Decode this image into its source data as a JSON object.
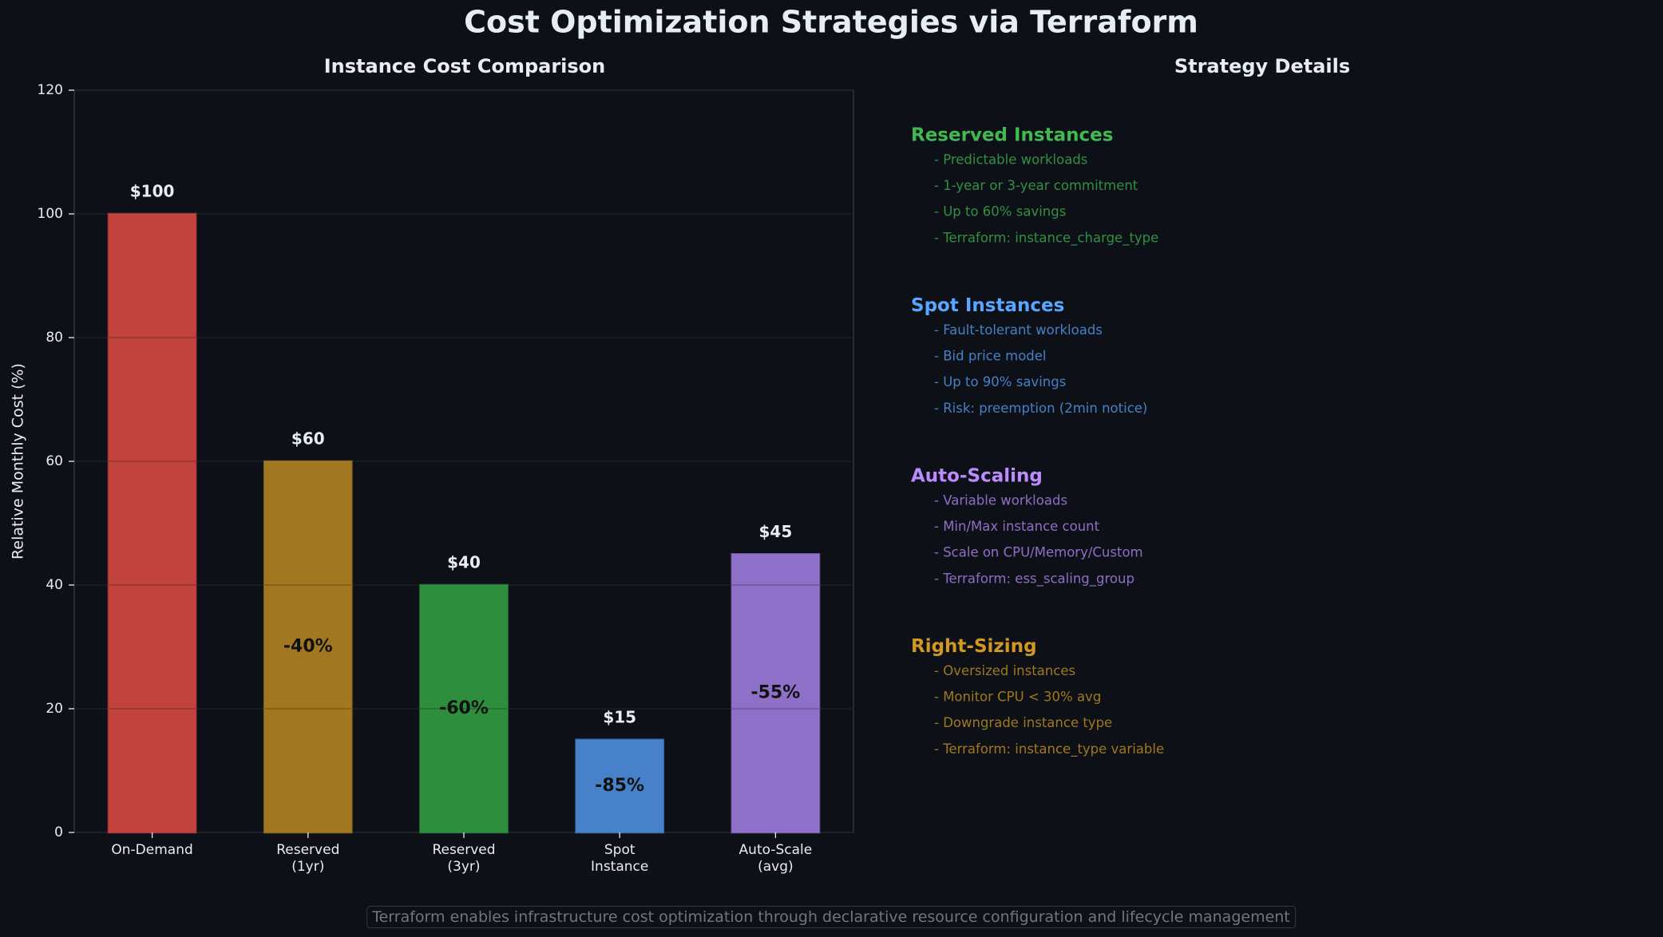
{
  "title": "Cost Optimization Strategies via Terraform",
  "chart_data": {
    "type": "bar",
    "title": "Instance Cost Comparison",
    "y_label": "Relative Monthly Cost (%)",
    "categories": [
      "On-Demand",
      "Reserved\n(1yr)",
      "Reserved\n(3yr)",
      "Spot\nInstance",
      "Auto-Scale\n(avg)"
    ],
    "values": [
      100,
      60,
      40,
      15,
      45
    ],
    "value_labels": [
      "$100",
      "$60",
      "$40",
      "$15",
      "$45"
    ],
    "bar_annotations": [
      null,
      "-40%",
      "-60%",
      "-85%",
      "-55%"
    ],
    "colors": [
      "#cc4640",
      "#aa7e22",
      "#319540",
      "#4a88d4",
      "#9776d2"
    ],
    "ylim": [
      0,
      120
    ],
    "yticks": [
      0,
      20,
      40,
      60,
      80,
      100,
      120
    ],
    "grid": true
  },
  "details": {
    "title": "Strategy Details",
    "sections": [
      {
        "heading": "Reserved Instances",
        "color": "#3fb950",
        "items": [
          "- Predictable workloads",
          "- 1-year or 3-year commitment",
          "- Up to 60% savings",
          "- Terraform: instance_charge_type"
        ]
      },
      {
        "heading": "Spot Instances",
        "color": "#58a6ff",
        "items": [
          "- Fault-tolerant workloads",
          "- Bid price model",
          "- Up to 90% savings",
          "- Risk: preemption (2min notice)"
        ]
      },
      {
        "heading": "Auto-Scaling",
        "color": "#bc8cff",
        "items": [
          "- Variable workloads",
          "- Min/Max instance count",
          "- Scale on CPU/Memory/Custom",
          "- Terraform: ess_scaling_group"
        ]
      },
      {
        "heading": "Right-Sizing",
        "color": "#d29922",
        "items": [
          "- Oversized instances",
          "- Monitor CPU < 30% avg",
          "- Downgrade instance type",
          "- Terraform: instance_type variable"
        ]
      }
    ]
  },
  "footer": "Terraform enables infrastructure cost optimization through declarative resource configuration and lifecycle management"
}
